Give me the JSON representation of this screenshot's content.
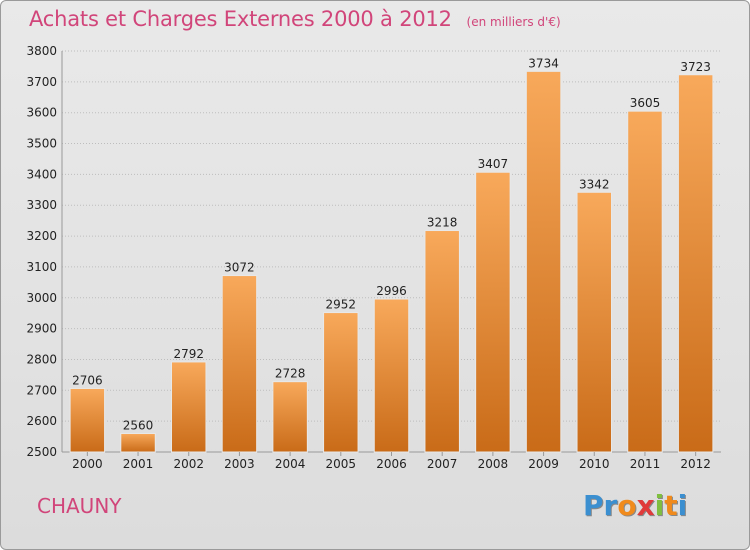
{
  "title": "Achats et Charges Externes 2000 à 2012",
  "unit": "(en milliers d'€)",
  "city": "CHAUNY",
  "brand": {
    "letters": [
      "P",
      "r",
      "o",
      "x",
      "i",
      "t",
      "i"
    ],
    "colors": [
      "#3b8fd0",
      "#3b8fd0",
      "#f08a1c",
      "#e03a3a",
      "#7fbf3f",
      "#f08a1c",
      "#3b8fd0"
    ]
  },
  "colors": {
    "bar_top": "#f8a95b",
    "bar_bottom": "#c96b18",
    "title": "#d1457a"
  },
  "chart_data": {
    "type": "bar",
    "categories": [
      "2000",
      "2001",
      "2002",
      "2003",
      "2004",
      "2005",
      "2006",
      "2007",
      "2008",
      "2009",
      "2010",
      "2011",
      "2012"
    ],
    "values": [
      2706,
      2560,
      2792,
      3072,
      2728,
      2952,
      2996,
      3218,
      3407,
      3734,
      3342,
      3605,
      3723
    ],
    "ylim": [
      2500,
      3800
    ],
    "yticks": [
      2500,
      2600,
      2700,
      2800,
      2900,
      3000,
      3100,
      3200,
      3300,
      3400,
      3500,
      3600,
      3700,
      3800
    ],
    "grid": true,
    "data_labels": true
  }
}
